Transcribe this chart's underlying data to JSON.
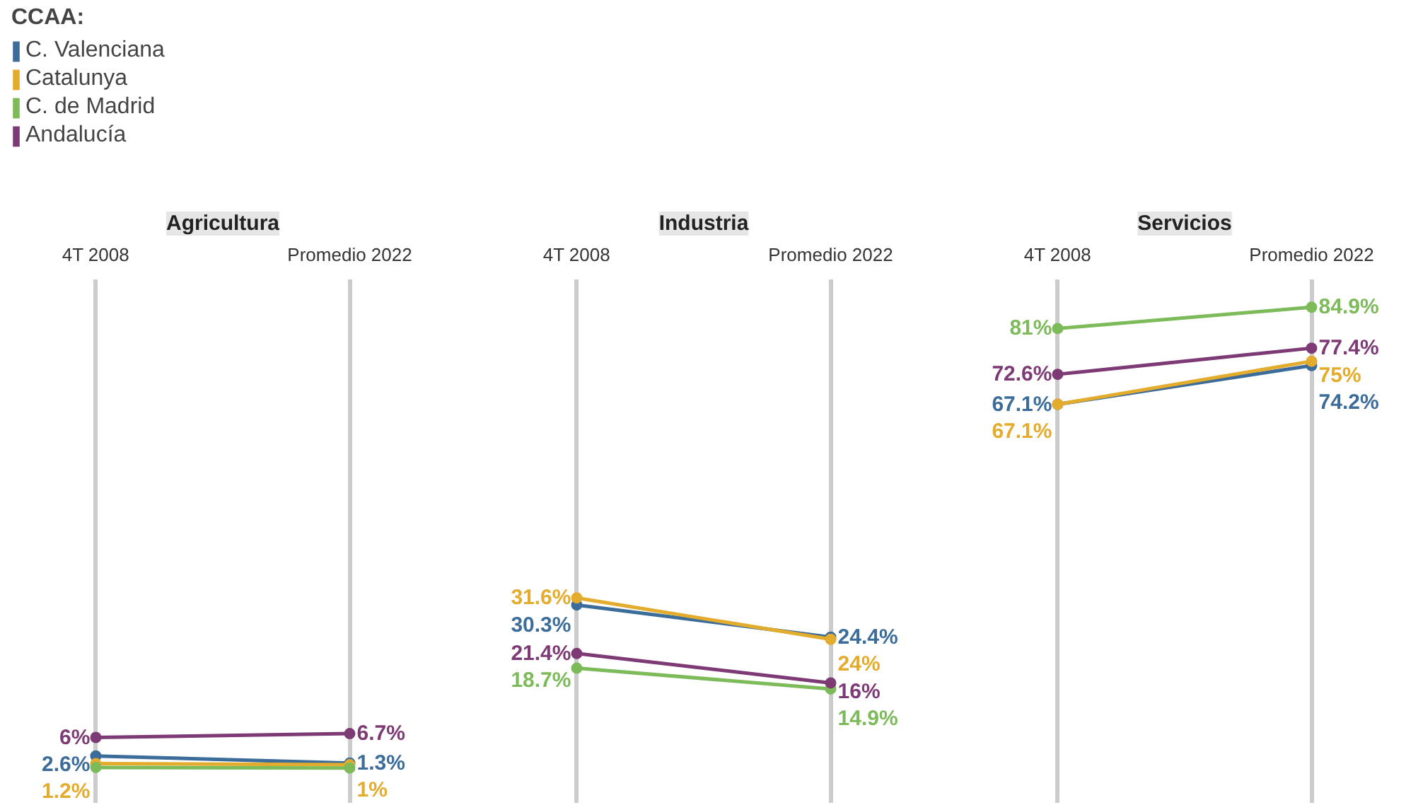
{
  "chart_data": [
    {
      "type": "line",
      "title": "Agricultura",
      "legend_title": "CCAA:",
      "legend": "top left",
      "categories": [
        "4T 2008",
        "Promedio 2022"
      ],
      "ylim": [
        -6,
        90
      ],
      "tick_labels": "x",
      "grid": "x",
      "marker": "circle",
      "series": [
        {
          "name": "C. Valenciana",
          "color": "#3b6c9a",
          "values": [
            2.6,
            1.3
          ],
          "value_labels": [
            "2.6%",
            "1.3%"
          ]
        },
        {
          "name": "Catalunya",
          "color": "#e3ac2d",
          "values": [
            1.2,
            1
          ],
          "value_labels": [
            "1.2%",
            "1%"
          ]
        },
        {
          "name": "C. de Madrid",
          "color": "#7dba5a",
          "values": [
            0.5,
            0.4
          ],
          "value_labels": [
            null,
            null
          ]
        },
        {
          "name": "Andalucía",
          "color": "#7d3a74",
          "values": [
            6,
            6.7
          ],
          "value_labels": [
            "6%",
            "6.7%"
          ]
        }
      ]
    },
    {
      "type": "line",
      "title": "Industria",
      "categories": [
        "4T 2008",
        "Promedio 2022"
      ],
      "ylim": [
        -6,
        90
      ],
      "tick_labels": "x",
      "grid": "x",
      "marker": "circle",
      "series": [
        {
          "color": "#3b6c9a",
          "values": [
            30.3,
            24.4
          ],
          "value_labels": [
            "30.3%",
            "24.4%"
          ]
        },
        {
          "color": "#e3ac2d",
          "values": [
            31.6,
            24
          ],
          "value_labels": [
            "31.6%",
            "24%"
          ]
        },
        {
          "color": "#7dba5a",
          "values": [
            18.7,
            14.9
          ],
          "value_labels": [
            "18.7%",
            "14.9%"
          ]
        },
        {
          "color": "#7d3a74",
          "values": [
            21.4,
            16
          ],
          "value_labels": [
            "21.4%",
            "16%"
          ]
        }
      ]
    },
    {
      "type": "line",
      "title": "Servicios",
      "categories": [
        "4T 2008",
        "Promedio 2022"
      ],
      "ylim": [
        -6,
        90
      ],
      "tick_labels": "x",
      "grid": "x",
      "marker": "circle",
      "series": [
        {
          "color": "#3b6c9a",
          "values": [
            67.1,
            74.2
          ],
          "value_labels": [
            "67.1%",
            "74.2%"
          ]
        },
        {
          "color": "#e3ac2d",
          "values": [
            67.1,
            75
          ],
          "value_labels": [
            "67.1%",
            "75%"
          ]
        },
        {
          "color": "#7dba5a",
          "values": [
            81,
            84.9
          ],
          "value_labels": [
            "81%",
            "84.9%"
          ]
        },
        {
          "color": "#7d3a74",
          "values": [
            72.6,
            77.4
          ],
          "value_labels": [
            "72.6%",
            "77.4%"
          ]
        }
      ]
    }
  ]
}
